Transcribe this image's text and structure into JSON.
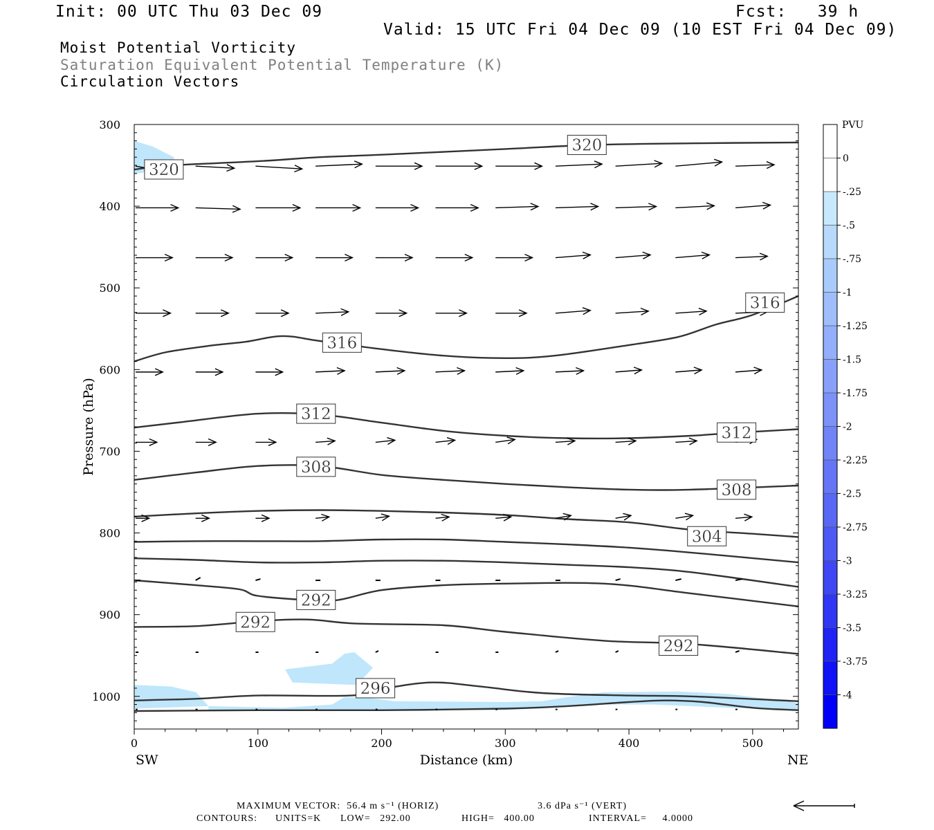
{
  "header": {
    "init": "Init: 00 UTC Thu 03 Dec 09",
    "fcst": "Fcst:   39 h",
    "valid": "Valid: 15 UTC Fri 04 Dec 09 (10 EST Fri 04 Dec 09)"
  },
  "titles": {
    "line1": "Moist Potential Vorticity",
    "line2": "Saturation Equivalent Potential Temperature (K)",
    "line3": "Circulation Vectors"
  },
  "footer": {
    "max_vector": "MAXIMUM VECTOR:  56.4 m s⁻¹ (HORIZ)",
    "max_vert": "3.6 dPa s⁻¹ (VERT)",
    "contours_label": "CONTOURS:",
    "units": "UNITS=K",
    "low": "LOW=   292.00",
    "high": "HIGH=   400.00",
    "interval": "INTERVAL=     4.0000"
  },
  "colors": {
    "contour": "#333333",
    "pv_light": "#bfe6fb",
    "vector": "#000000"
  },
  "colorbar": {
    "title": "PVU",
    "labels": [
      "0",
      "-.25",
      "-.5",
      "-.75",
      "-1",
      "-1.25",
      "-1.5",
      "-1.75",
      "-2",
      "-2.25",
      "-2.5",
      "-2.75",
      "-3",
      "-3.25",
      "-3.5",
      "-3.75",
      "-4"
    ],
    "colors": [
      "#ffffff",
      "#ffffff",
      "#c8e9fd",
      "#b7d9fc",
      "#a8cbfb",
      "#9ebdfa",
      "#93aefa",
      "#88a0f9",
      "#7c92f8",
      "#7083f7",
      "#6575f6",
      "#5967f5",
      "#4e59f4",
      "#3f46f4",
      "#3037f4",
      "#1f24f5",
      "#0f13f6",
      "#0000f8"
    ]
  },
  "chart_data": {
    "type": "cross-section",
    "title": "Moist Potential Vorticity",
    "xlabel": "Distance (km)",
    "ylabel": "Pressure (hPa)",
    "xlim": [
      0,
      537
    ],
    "ylim": [
      1040,
      300
    ],
    "x_ticks": [
      0,
      100,
      200,
      300,
      400,
      500
    ],
    "y_ticks": [
      300,
      400,
      500,
      600,
      700,
      800,
      900,
      1000
    ],
    "x_end_labels": {
      "left": "SW",
      "right": "NE"
    },
    "contours": [
      {
        "level": 320,
        "points": [
          [
            0,
            355
          ],
          [
            30,
            350
          ],
          [
            100,
            345
          ],
          [
            150,
            340
          ],
          [
            200,
            337
          ],
          [
            300,
            330
          ],
          [
            370,
            325
          ],
          [
            450,
            323
          ],
          [
            537,
            322
          ]
        ],
        "labels": [
          [
            24,
            355
          ],
          [
            366,
            325
          ]
        ]
      },
      {
        "level": 316,
        "points": [
          [
            0,
            590
          ],
          [
            25,
            579
          ],
          [
            60,
            571
          ],
          [
            90,
            566
          ],
          [
            120,
            559
          ],
          [
            150,
            565
          ],
          [
            200,
            575
          ],
          [
            250,
            583
          ],
          [
            300,
            586
          ],
          [
            340,
            583
          ],
          [
            400,
            570
          ],
          [
            440,
            560
          ],
          [
            470,
            545
          ],
          [
            500,
            533
          ],
          [
            537,
            510
          ]
        ],
        "labels": [
          [
            168,
            567
          ],
          [
            510,
            518
          ]
        ]
      },
      {
        "level": 312,
        "points": [
          [
            0,
            671
          ],
          [
            40,
            664
          ],
          [
            100,
            654
          ],
          [
            150,
            655
          ],
          [
            200,
            665
          ],
          [
            250,
            675
          ],
          [
            300,
            681
          ],
          [
            350,
            684
          ],
          [
            400,
            684
          ],
          [
            450,
            681
          ],
          [
            490,
            677
          ],
          [
            537,
            673
          ]
        ],
        "labels": [
          [
            147,
            654
          ],
          [
            487,
            677
          ]
        ]
      },
      {
        "level": 308,
        "points": [
          [
            0,
            735
          ],
          [
            50,
            726
          ],
          [
            100,
            718
          ],
          [
            150,
            718
          ],
          [
            200,
            729
          ],
          [
            250,
            735
          ],
          [
            300,
            740
          ],
          [
            350,
            744
          ],
          [
            400,
            747
          ],
          [
            450,
            747
          ],
          [
            537,
            742
          ]
        ],
        "labels": [
          [
            147,
            719
          ],
          [
            487,
            747
          ]
        ]
      },
      {
        "level": 304,
        "points": [
          [
            0,
            780
          ],
          [
            50,
            776
          ],
          [
            100,
            773
          ],
          [
            150,
            772
          ],
          [
            200,
            773
          ],
          [
            250,
            775
          ],
          [
            300,
            778
          ],
          [
            350,
            783
          ],
          [
            400,
            787
          ],
          [
            450,
            796
          ],
          [
            500,
            801
          ],
          [
            537,
            805
          ]
        ],
        "labels": [
          [
            463,
            804
          ]
        ]
      },
      {
        "level": 300,
        "points": [
          [
            0,
            811
          ],
          [
            50,
            810
          ],
          [
            100,
            810
          ],
          [
            150,
            810
          ],
          [
            200,
            808
          ],
          [
            250,
            808
          ],
          [
            300,
            811
          ],
          [
            350,
            814
          ],
          [
            400,
            818
          ],
          [
            450,
            824
          ],
          [
            537,
            836
          ]
        ],
        "labels": []
      },
      {
        "level": 296,
        "points": [
          [
            0,
            831
          ],
          [
            50,
            833
          ],
          [
            100,
            836
          ],
          [
            150,
            836
          ],
          [
            200,
            834
          ],
          [
            250,
            834
          ],
          [
            300,
            836
          ],
          [
            350,
            839
          ],
          [
            400,
            842
          ],
          [
            450,
            848
          ],
          [
            537,
            866
          ]
        ],
        "labels": []
      },
      {
        "level": 292,
        "points": [
          [
            0,
            858
          ],
          [
            50,
            864
          ],
          [
            85,
            869
          ],
          [
            100,
            877
          ],
          [
            140,
            882
          ],
          [
            165,
            882
          ],
          [
            200,
            870
          ],
          [
            250,
            864
          ],
          [
            300,
            862
          ],
          [
            380,
            862
          ],
          [
            450,
            874
          ],
          [
            537,
            890
          ]
        ],
        "labels": [
          [
            147,
            882
          ]
        ]
      },
      {
        "level": 292,
        "points": [
          [
            0,
            915
          ],
          [
            50,
            914
          ],
          [
            100,
            908
          ],
          [
            140,
            906
          ],
          [
            180,
            911
          ],
          [
            250,
            913
          ],
          [
            300,
            921
          ],
          [
            380,
            932
          ],
          [
            450,
            936
          ],
          [
            537,
            948
          ]
        ],
        "labels": [
          [
            98,
            909
          ],
          [
            440,
            938
          ]
        ]
      },
      {
        "level": 296,
        "points": [
          [
            0,
            1005
          ],
          [
            50,
            1003
          ],
          [
            100,
            999
          ],
          [
            175,
            999
          ],
          [
            200,
            991
          ],
          [
            240,
            983
          ],
          [
            280,
            988
          ],
          [
            330,
            996
          ],
          [
            400,
            999
          ],
          [
            450,
            1000
          ],
          [
            537,
            1006
          ]
        ],
        "labels": [
          [
            195,
            990
          ]
        ]
      },
      {
        "level": 300,
        "points": [
          [
            0,
            1018
          ],
          [
            100,
            1017
          ],
          [
            200,
            1017
          ],
          [
            300,
            1015
          ],
          [
            350,
            1012
          ],
          [
            400,
            1007
          ],
          [
            430,
            1005
          ],
          [
            460,
            1007
          ],
          [
            500,
            1014
          ],
          [
            537,
            1017
          ]
        ],
        "labels": []
      }
    ],
    "pv_regions": [
      {
        "pvu_max": -0.25,
        "points": [
          [
            0,
            320
          ],
          [
            15,
            327
          ],
          [
            32,
            340
          ],
          [
            33,
            355
          ],
          [
            0,
            360
          ]
        ]
      },
      {
        "pvu_max": -0.25,
        "points": [
          [
            122,
            967
          ],
          [
            160,
            960
          ],
          [
            170,
            948
          ],
          [
            178,
            946
          ],
          [
            193,
            965
          ],
          [
            180,
            986
          ],
          [
            128,
            983
          ]
        ]
      },
      {
        "pvu_max": -0.25,
        "points": [
          [
            0,
            986
          ],
          [
            30,
            988
          ],
          [
            50,
            995
          ],
          [
            60,
            1012
          ],
          [
            0,
            1015
          ]
        ]
      },
      {
        "pvu_max": -0.25,
        "points": [
          [
            60,
            1012
          ],
          [
            120,
            1014
          ],
          [
            160,
            1010
          ],
          [
            170,
            1001
          ],
          [
            190,
            1002
          ],
          [
            210,
            1006
          ],
          [
            300,
            1007
          ],
          [
            330,
            1006
          ],
          [
            350,
            1001
          ],
          [
            380,
            995
          ],
          [
            440,
            994
          ],
          [
            480,
            997
          ],
          [
            537,
            1008
          ],
          [
            537,
            1016
          ],
          [
            480,
            1014
          ],
          [
            420,
            1010
          ],
          [
            380,
            1010
          ],
          [
            300,
            1017
          ],
          [
            200,
            1016
          ],
          [
            100,
            1018
          ],
          [
            60,
            1018
          ]
        ]
      }
    ],
    "vectors": [
      {
        "p": 351,
        "u": [
          40,
          40,
          48,
          48,
          48,
          48,
          48,
          48,
          48,
          48,
          40
        ],
        "v": [
          10,
          3,
          4,
          -3,
          0,
          0,
          0,
          -3,
          -4,
          -6,
          -2
        ]
      },
      {
        "p": 402,
        "u": [
          44,
          46,
          46,
          46,
          44,
          44,
          44,
          44,
          42,
          40,
          36
        ],
        "v": [
          0,
          2,
          0,
          0,
          0,
          0,
          -2,
          -2,
          -2,
          -3,
          -4
        ]
      },
      {
        "p": 463,
        "u": [
          38,
          38,
          38,
          38,
          38,
          38,
          38,
          36,
          36,
          35,
          33
        ],
        "v": [
          0,
          0,
          0,
          0,
          0,
          0,
          0,
          -4,
          -4,
          -4,
          -2
        ]
      },
      {
        "p": 531,
        "u": [
          36,
          34,
          34,
          34,
          32,
          32,
          32,
          36,
          34,
          32,
          33
        ],
        "v": [
          0,
          0,
          0,
          -2,
          0,
          0,
          0,
          -4,
          -3,
          -3,
          -2
        ]
      },
      {
        "p": 603,
        "u": [
          28,
          28,
          28,
          30,
          30,
          30,
          29,
          29,
          27,
          27,
          27
        ],
        "v": [
          0,
          0,
          0,
          -2,
          -2,
          -2,
          -2,
          -2,
          -3,
          -3,
          -3
        ]
      },
      {
        "p": 689,
        "u": [
          22,
          21,
          21,
          20,
          20,
          20,
          20,
          20,
          21,
          22,
          22
        ],
        "v": [
          0,
          0,
          0,
          -2,
          -3,
          -3,
          -4,
          -2,
          -2,
          -2,
          -4
        ]
      },
      {
        "p": 782,
        "u": [
          14,
          14,
          14,
          14,
          14,
          14,
          16,
          16,
          16,
          18,
          17
        ],
        "v": [
          0,
          0,
          0,
          -2,
          -3,
          -2,
          -2,
          -4,
          -4,
          -4,
          -2
        ]
      },
      {
        "p": 858,
        "u": [
          5,
          5,
          5,
          5,
          5,
          5,
          5,
          5,
          5,
          6,
          7
        ],
        "v": [
          0,
          -4,
          -2,
          0,
          0,
          0,
          0,
          0,
          -2,
          -2,
          -2
        ]
      },
      {
        "p": 946,
        "u": [
          3,
          3,
          3,
          3,
          3,
          3,
          3,
          3,
          3,
          3,
          4
        ],
        "v": [
          0,
          0,
          0,
          0,
          -2,
          0,
          0,
          -2,
          -2,
          -3,
          -2
        ]
      },
      {
        "p": 1016,
        "u": [
          2,
          2,
          2,
          2,
          2,
          2,
          2,
          2,
          2,
          2,
          2
        ],
        "v": [
          0,
          0,
          0,
          0,
          0,
          0,
          0,
          0,
          0,
          0,
          0
        ]
      }
    ],
    "vector_x": [
      0,
      48.5,
      97,
      145.5,
      194,
      242.5,
      291,
      339.5,
      388,
      436.5,
      485
    ]
  }
}
